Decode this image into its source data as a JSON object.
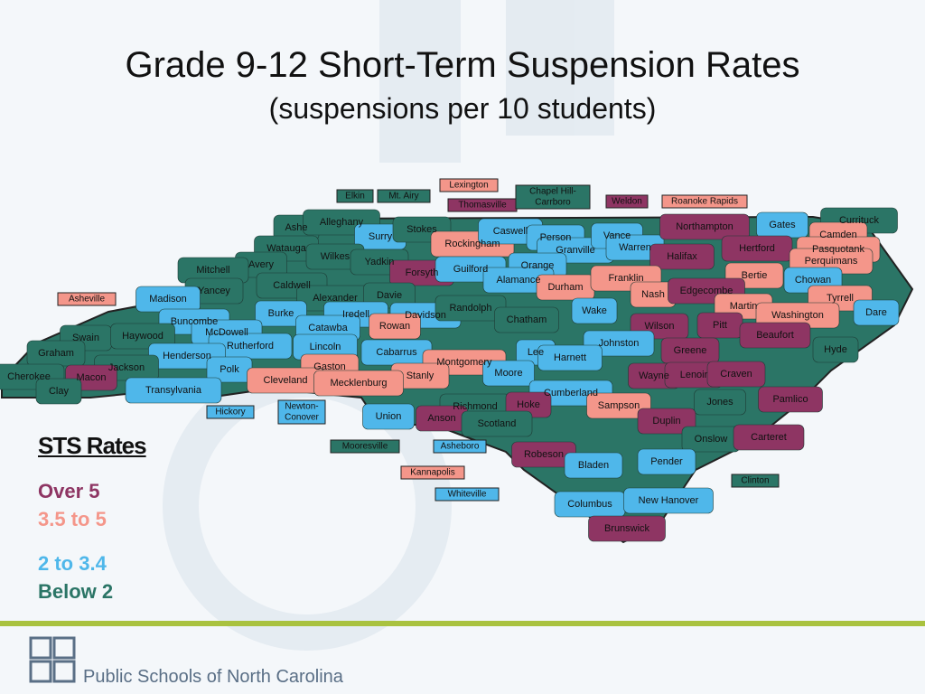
{
  "title": "Grade 9-12 Short-Term Suspension Rates",
  "subtitle": "(suspensions per 10 students)",
  "legend": {
    "title": "STS Rates",
    "items": [
      {
        "label": "Over 5",
        "color": "#8e3563"
      },
      {
        "label": "3.5 to 5",
        "color": "#f4968a"
      },
      {
        "label": "2 to 3.4",
        "color": "#4fb7ea"
      },
      {
        "label": "Below 2",
        "color": "#2b7566"
      }
    ]
  },
  "counties": [
    {
      "name": "Ashe",
      "color": "#2b7566"
    },
    {
      "name": "Alleghany",
      "color": "#2b7566"
    },
    {
      "name": "Surry",
      "color": "#4fb7ea"
    },
    {
      "name": "Stokes",
      "color": "#2b7566"
    },
    {
      "name": "Rockingham",
      "color": "#f4968a"
    },
    {
      "name": "Caswell",
      "color": "#4fb7ea"
    },
    {
      "name": "Person",
      "color": "#4fb7ea"
    },
    {
      "name": "Granville",
      "color": "#4fb7ea"
    },
    {
      "name": "Vance",
      "color": "#4fb7ea"
    },
    {
      "name": "Warren",
      "color": "#4fb7ea"
    },
    {
      "name": "Northampton",
      "color": "#8e3563"
    },
    {
      "name": "Gates",
      "color": "#4fb7ea"
    },
    {
      "name": "Currituck",
      "color": "#2b7566"
    },
    {
      "name": "Camden",
      "color": "#f4968a"
    },
    {
      "name": "Hertford",
      "color": "#8e3563"
    },
    {
      "name": "Pasquotank",
      "color": "#f4968a"
    },
    {
      "name": "Perquimans",
      "color": "#f4968a"
    },
    {
      "name": "Watauga",
      "color": "#2b7566"
    },
    {
      "name": "Wilkes",
      "color": "#2b7566"
    },
    {
      "name": "Yadkin",
      "color": "#2b7566"
    },
    {
      "name": "Avery",
      "color": "#2b7566"
    },
    {
      "name": "Mitchell",
      "color": "#2b7566"
    },
    {
      "name": "Forsyth",
      "color": "#8e3563"
    },
    {
      "name": "Guilford",
      "color": "#4fb7ea"
    },
    {
      "name": "Orange",
      "color": "#4fb7ea"
    },
    {
      "name": "Halifax",
      "color": "#8e3563"
    },
    {
      "name": "Bertie",
      "color": "#f4968a"
    },
    {
      "name": "Chowan",
      "color": "#4fb7ea"
    },
    {
      "name": "Alamance",
      "color": "#4fb7ea"
    },
    {
      "name": "Durham",
      "color": "#f4968a"
    },
    {
      "name": "Franklin",
      "color": "#f4968a"
    },
    {
      "name": "Caldwell",
      "color": "#2b7566"
    },
    {
      "name": "Yancey",
      "color": "#2b7566"
    },
    {
      "name": "Alexander",
      "color": "#2b7566"
    },
    {
      "name": "Davie",
      "color": "#2b7566"
    },
    {
      "name": "Nash",
      "color": "#f4968a"
    },
    {
      "name": "Edgecombe",
      "color": "#8e3563"
    },
    {
      "name": "Tyrrell",
      "color": "#f4968a"
    },
    {
      "name": "Madison",
      "color": "#4fb7ea"
    },
    {
      "name": "Martin",
      "color": "#f4968a"
    },
    {
      "name": "Dare",
      "color": "#4fb7ea"
    },
    {
      "name": "Burke",
      "color": "#4fb7ea"
    },
    {
      "name": "Iredell",
      "color": "#4fb7ea"
    },
    {
      "name": "Davidson",
      "color": "#4fb7ea"
    },
    {
      "name": "Randolph",
      "color": "#2b7566"
    },
    {
      "name": "Wake",
      "color": "#4fb7ea"
    },
    {
      "name": "Washington",
      "color": "#f4968a"
    },
    {
      "name": "Catawba",
      "color": "#4fb7ea"
    },
    {
      "name": "Rowan",
      "color": "#f4968a"
    },
    {
      "name": "Chatham",
      "color": "#2b7566"
    },
    {
      "name": "Buncombe",
      "color": "#4fb7ea"
    },
    {
      "name": "McDowell",
      "color": "#4fb7ea"
    },
    {
      "name": "Wilson",
      "color": "#8e3563"
    },
    {
      "name": "Pitt",
      "color": "#8e3563"
    },
    {
      "name": "Beaufort",
      "color": "#8e3563"
    },
    {
      "name": "Swain",
      "color": "#2b7566"
    },
    {
      "name": "Haywood",
      "color": "#2b7566"
    },
    {
      "name": "Rutherford",
      "color": "#4fb7ea"
    },
    {
      "name": "Lincoln",
      "color": "#4fb7ea"
    },
    {
      "name": "Johnston",
      "color": "#4fb7ea"
    },
    {
      "name": "Greene",
      "color": "#8e3563"
    },
    {
      "name": "Hyde",
      "color": "#2b7566"
    },
    {
      "name": "Graham",
      "color": "#2b7566"
    },
    {
      "name": "Henderson",
      "color": "#4fb7ea"
    },
    {
      "name": "Cabarrus",
      "color": "#4fb7ea"
    },
    {
      "name": "Lee",
      "color": "#4fb7ea"
    },
    {
      "name": "Harnett",
      "color": "#4fb7ea"
    },
    {
      "name": "Montgomery",
      "color": "#f4968a"
    },
    {
      "name": "Gaston",
      "color": "#f4968a"
    },
    {
      "name": "Jackson",
      "color": "#2b7566"
    },
    {
      "name": "Polk",
      "color": "#4fb7ea"
    },
    {
      "name": "Moore",
      "color": "#4fb7ea"
    },
    {
      "name": "Wayne",
      "color": "#8e3563"
    },
    {
      "name": "Lenoir",
      "color": "#8e3563"
    },
    {
      "name": "Craven",
      "color": "#8e3563"
    },
    {
      "name": "Cherokee",
      "color": "#2b7566"
    },
    {
      "name": "Macon",
      "color": "#8e3563"
    },
    {
      "name": "Stanly",
      "color": "#f4968a"
    },
    {
      "name": "Cleveland",
      "color": "#f4968a"
    },
    {
      "name": "Mecklenburg",
      "color": "#f4968a"
    },
    {
      "name": "Clay",
      "color": "#2b7566"
    },
    {
      "name": "Transylvania",
      "color": "#4fb7ea"
    },
    {
      "name": "Cumberland",
      "color": "#4fb7ea"
    },
    {
      "name": "Pamlico",
      "color": "#8e3563"
    },
    {
      "name": "Sampson",
      "color": "#f4968a"
    },
    {
      "name": "Jones",
      "color": "#2b7566"
    },
    {
      "name": "Richmond",
      "color": "#2b7566"
    },
    {
      "name": "Hoke",
      "color": "#8e3563"
    },
    {
      "name": "Union",
      "color": "#4fb7ea"
    },
    {
      "name": "Anson",
      "color": "#8e3563"
    },
    {
      "name": "Duplin",
      "color": "#8e3563"
    },
    {
      "name": "Scotland",
      "color": "#2b7566"
    },
    {
      "name": "Onslow",
      "color": "#2b7566"
    },
    {
      "name": "Carteret",
      "color": "#8e3563"
    },
    {
      "name": "Robeson",
      "color": "#8e3563"
    },
    {
      "name": "Pender",
      "color": "#4fb7ea"
    },
    {
      "name": "Bladen",
      "color": "#4fb7ea"
    },
    {
      "name": "Columbus",
      "color": "#4fb7ea"
    },
    {
      "name": "New Hanover",
      "color": "#4fb7ea"
    },
    {
      "name": "Brunswick",
      "color": "#8e3563"
    }
  ],
  "cities": [
    {
      "lines": [
        "Lexington"
      ],
      "color": "#f4968a"
    },
    {
      "lines": [
        "Elkin"
      ],
      "color": "#2b7566"
    },
    {
      "lines": [
        "Mt. Airy"
      ],
      "color": "#2b7566"
    },
    {
      "lines": [
        "Thomasville"
      ],
      "color": "#8e3563"
    },
    {
      "lines": [
        "Chapel Hill-",
        "Carrboro"
      ],
      "color": "#2b7566"
    },
    {
      "lines": [
        "Weldon"
      ],
      "color": "#8e3563"
    },
    {
      "lines": [
        "Roanoke Rapids"
      ],
      "color": "#f4968a"
    },
    {
      "lines": [
        "Asheville"
      ],
      "color": "#f4968a"
    },
    {
      "lines": [
        "Hickory"
      ],
      "color": "#4fb7ea"
    },
    {
      "lines": [
        "Newton-",
        "Conover"
      ],
      "color": "#4fb7ea"
    },
    {
      "lines": [
        "Mooresville"
      ],
      "color": "#2b7566"
    },
    {
      "lines": [
        "Asheboro"
      ],
      "color": "#4fb7ea"
    },
    {
      "lines": [
        "Kannapolis"
      ],
      "color": "#f4968a"
    },
    {
      "lines": [
        "Whiteville"
      ],
      "color": "#4fb7ea"
    },
    {
      "lines": [
        "Clinton"
      ],
      "color": "#2b7566"
    }
  ],
  "footer": "Public Schools of North Carolina"
}
